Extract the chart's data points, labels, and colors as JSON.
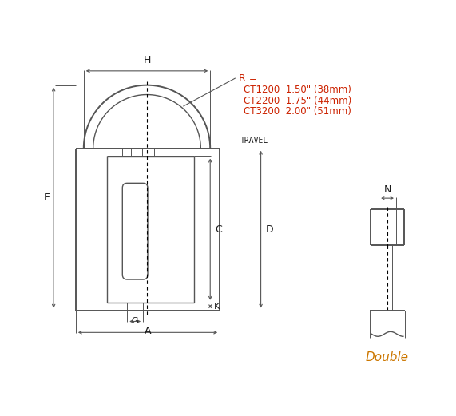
{
  "bg_color": "#ffffff",
  "line_color": "#555555",
  "text_color": "#1a1a1a",
  "red_color": "#cc2200",
  "orange_color": "#cc7700",
  "figsize": [
    5.71,
    5.21
  ],
  "dpi": 100,
  "R_label": "R =",
  "R_lines": [
    "CT1200  1.50\" (38mm)",
    "CT2200  1.75\" (44mm)",
    "CT3200  2.00\" (51mm)"
  ],
  "double_label": "Double"
}
